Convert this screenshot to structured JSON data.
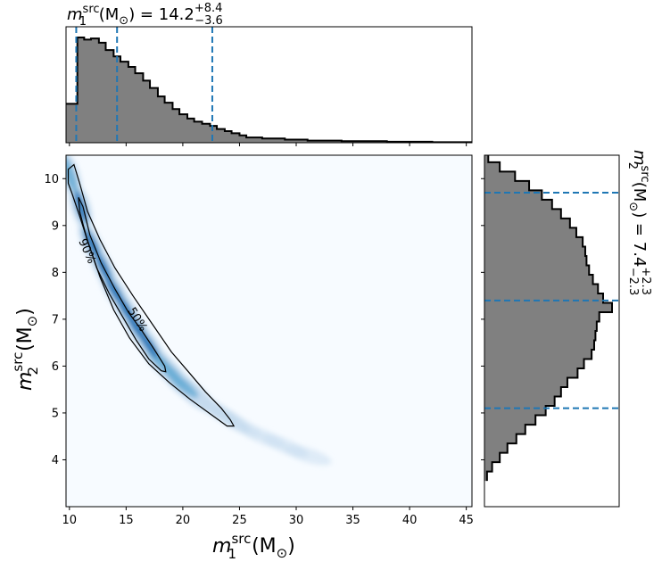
{
  "chart_data": [
    {
      "type": "histogram",
      "panel": "top-marginal",
      "title_main": "m",
      "title_sub": "1",
      "title_sup": "src",
      "title_unit": " (M",
      "title_unit_sub": "⊙",
      "title_rest": ") = 14.2",
      "title_plus": "+8.4",
      "title_minus": "−3.6",
      "x_range": [
        9.7,
        45.5
      ],
      "step_x": [
        9.7,
        10.7,
        11.3,
        11.9,
        12.6,
        13.2,
        13.9,
        14.5,
        15.2,
        15.8,
        16.5,
        17.1,
        17.8,
        18.4,
        19.1,
        19.7,
        20.4,
        21.0,
        21.7,
        22.4,
        23.0,
        23.7,
        24.3,
        25.0,
        25.6,
        27.0,
        29.0,
        31.0,
        34.0,
        38.0,
        42.0,
        45.5
      ],
      "step_y": [
        0.37,
        1.0,
        0.98,
        0.99,
        0.95,
        0.88,
        0.82,
        0.77,
        0.72,
        0.66,
        0.59,
        0.52,
        0.44,
        0.38,
        0.32,
        0.27,
        0.23,
        0.2,
        0.18,
        0.16,
        0.13,
        0.11,
        0.09,
        0.07,
        0.05,
        0.04,
        0.03,
        0.02,
        0.015,
        0.01,
        0.005
      ],
      "quantile_lines": [
        10.6,
        14.2,
        22.6
      ],
      "fill_color": "#808080",
      "line_color": "#1f77b4"
    },
    {
      "type": "heatmap",
      "panel": "joint",
      "x_range": [
        9.7,
        45.5
      ],
      "y_range": [
        3.0,
        10.5
      ],
      "x_ticks": [
        "10",
        "15",
        "20",
        "25",
        "30",
        "35",
        "40",
        "45"
      ],
      "y_ticks": [
        "4",
        "5",
        "6",
        "7",
        "8",
        "9",
        "10"
      ],
      "xlabel_main": "m",
      "xlabel_sub": "1",
      "xlabel_sup": "src",
      "xlabel_unit": " (M",
      "xlabel_unit_sub": "⊙",
      "xlabel_close": ")",
      "ylabel_main": "m",
      "ylabel_sub": "2",
      "ylabel_sup": "src",
      "ylabel_unit": " (M",
      "ylabel_unit_sub": "⊙",
      "ylabel_close": ")",
      "density_ridge": [
        [
          10.0,
          10.1
        ],
        [
          11.0,
          9.4
        ],
        [
          12.0,
          8.6
        ],
        [
          13.0,
          8.1
        ],
        [
          14.0,
          7.6
        ],
        [
          15.0,
          7.2
        ],
        [
          16.0,
          6.8
        ],
        [
          17.0,
          6.45
        ],
        [
          18.0,
          6.1
        ],
        [
          19.0,
          5.85
        ],
        [
          20.0,
          5.6
        ],
        [
          21.0,
          5.4
        ],
        [
          22.0,
          5.2
        ],
        [
          23.0,
          5.05
        ],
        [
          24.0,
          4.9
        ],
        [
          25.0,
          4.75
        ],
        [
          27.0,
          4.5
        ],
        [
          29.0,
          4.3
        ],
        [
          31.0,
          4.1
        ],
        [
          33.0,
          3.95
        ]
      ],
      "contour_90": [
        [
          9.9,
          10.2
        ],
        [
          10.4,
          10.3
        ],
        [
          10.9,
          9.9
        ],
        [
          11.6,
          9.3
        ],
        [
          12.7,
          8.7
        ],
        [
          14.0,
          8.1
        ],
        [
          15.6,
          7.5
        ],
        [
          17.3,
          6.9
        ],
        [
          19.0,
          6.3
        ],
        [
          20.6,
          5.85
        ],
        [
          22.0,
          5.45
        ],
        [
          23.4,
          5.1
        ],
        [
          24.2,
          4.85
        ],
        [
          24.5,
          4.72
        ],
        [
          23.9,
          4.72
        ],
        [
          22.3,
          5.0
        ],
        [
          20.6,
          5.3
        ],
        [
          18.8,
          5.65
        ],
        [
          17.0,
          6.05
        ],
        [
          15.3,
          6.6
        ],
        [
          13.9,
          7.2
        ],
        [
          12.7,
          7.9
        ],
        [
          11.7,
          8.6
        ],
        [
          10.9,
          9.2
        ],
        [
          10.2,
          9.7
        ],
        [
          9.9,
          9.9
        ]
      ],
      "contour_50": [
        [
          10.8,
          9.6
        ],
        [
          11.2,
          9.4
        ],
        [
          11.8,
          8.8
        ],
        [
          12.8,
          8.2
        ],
        [
          14.0,
          7.65
        ],
        [
          15.2,
          7.15
        ],
        [
          16.4,
          6.75
        ],
        [
          17.5,
          6.35
        ],
        [
          18.4,
          6.0
        ],
        [
          18.5,
          5.88
        ],
        [
          18.1,
          5.9
        ],
        [
          17.0,
          6.15
        ],
        [
          15.9,
          6.55
        ],
        [
          14.7,
          7.05
        ],
        [
          13.5,
          7.55
        ],
        [
          12.4,
          8.1
        ],
        [
          11.5,
          8.75
        ],
        [
          10.9,
          9.3
        ],
        [
          10.8,
          9.6
        ]
      ],
      "contour_labels": [
        "90%",
        "50%"
      ],
      "cmap": [
        "#f7fbff",
        "#c6dbef",
        "#6baed6",
        "#2171b5",
        "#08306b"
      ]
    },
    {
      "type": "histogram",
      "panel": "right-marginal",
      "title_main": "m",
      "title_sub": "2",
      "title_sup": "src",
      "title_unit": " (M",
      "title_unit_sub": "⊙",
      "title_rest": ") = 7.4",
      "title_plus": "+2.3",
      "title_minus": "−2.3",
      "y_range": [
        3.0,
        10.5
      ],
      "step_y": [
        3.55,
        3.75,
        3.95,
        4.15,
        4.35,
        4.55,
        4.75,
        4.95,
        5.15,
        5.35,
        5.55,
        5.75,
        5.95,
        6.15,
        6.35,
        6.55,
        6.75,
        6.95,
        7.15,
        7.35,
        7.55,
        7.75,
        7.95,
        8.15,
        8.35,
        8.55,
        8.75,
        8.95,
        9.15,
        9.35,
        9.55,
        9.75,
        9.95,
        10.15,
        10.35,
        10.5
      ],
      "step_x": [
        0.02,
        0.06,
        0.12,
        0.18,
        0.25,
        0.32,
        0.4,
        0.48,
        0.55,
        0.6,
        0.65,
        0.73,
        0.78,
        0.84,
        0.86,
        0.87,
        0.88,
        0.9,
        1.0,
        0.93,
        0.89,
        0.85,
        0.82,
        0.8,
        0.79,
        0.77,
        0.72,
        0.67,
        0.6,
        0.53,
        0.45,
        0.35,
        0.24,
        0.12,
        0.03
      ],
      "quantile_lines": [
        5.1,
        7.4,
        9.7
      ],
      "fill_color": "#808080",
      "line_color": "#1f77b4"
    }
  ]
}
